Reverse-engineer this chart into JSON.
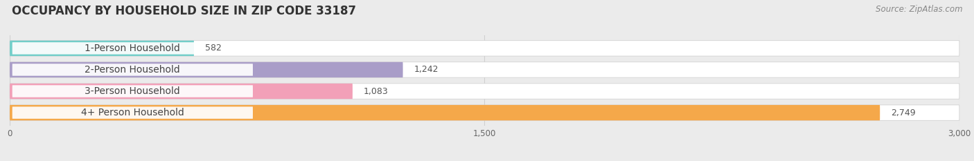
{
  "title": "OCCUPANCY BY HOUSEHOLD SIZE IN ZIP CODE 33187",
  "source": "Source: ZipAtlas.com",
  "categories": [
    "1-Person Household",
    "2-Person Household",
    "3-Person Household",
    "4+ Person Household"
  ],
  "values": [
    582,
    1242,
    1083,
    2749
  ],
  "bar_colors": [
    "#72CEC9",
    "#A99DC8",
    "#F2A0B8",
    "#F5A84A"
  ],
  "bar_labels": [
    "582",
    "1,242",
    "1,083",
    "2,749"
  ],
  "xlim": [
    0,
    3000
  ],
  "xticks": [
    0,
    1500,
    3000
  ],
  "xtick_labels": [
    "0",
    "1,500",
    "3,000"
  ],
  "bg_color": "#ebebeb",
  "bar_bg_color": "#ffffff",
  "grid_color": "#d0d0d0",
  "title_fontsize": 12,
  "source_fontsize": 8.5,
  "label_fontsize": 9,
  "category_fontsize": 10
}
